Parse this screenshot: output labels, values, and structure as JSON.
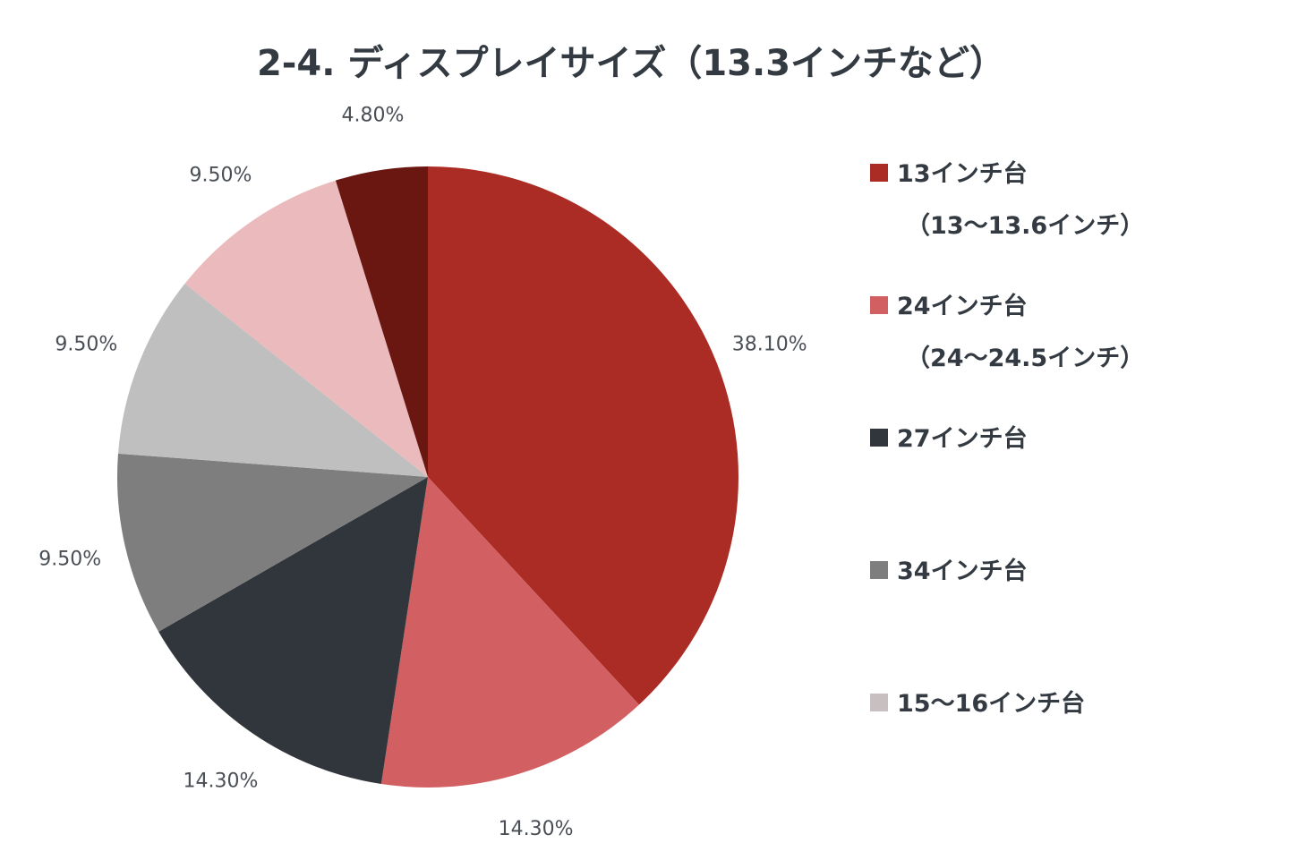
{
  "chart_data": {
    "type": "pie",
    "title": "2-4. ディスプレイサイズ（13.3インチなど）",
    "unit": "%",
    "slices": [
      {
        "name": "13インチ台",
        "name_line2": "（13〜13.6インチ）",
        "value": 38.1,
        "label": "38.10%",
        "color": "#ab2c25"
      },
      {
        "name": "24インチ台",
        "name_line2": "（24〜24.5インチ）",
        "value": 14.3,
        "label": "14.30%",
        "color": "#d26062"
      },
      {
        "name": "27インチ台",
        "name_line2": "",
        "value": 14.3,
        "label": "14.30%",
        "color": "#31363c"
      },
      {
        "name": "34インチ台",
        "name_line2": "",
        "value": 9.5,
        "label": "9.50%",
        "color": "#7e7e7e"
      },
      {
        "name": "",
        "name_line2": "",
        "value": 9.5,
        "label": "9.50%",
        "color": "#bfbfbf"
      },
      {
        "name": "15〜16インチ台",
        "name_line2": "",
        "value": 9.5,
        "label": "9.50%",
        "color": "#ebbabd"
      },
      {
        "name": "",
        "name_line2": "",
        "value": 4.8,
        "label": "4.80%",
        "color": "#6a1712"
      }
    ],
    "legend": {
      "placement": "right",
      "entries": [
        {
          "line1": "13インチ台",
          "line2": "（13〜13.6インチ）",
          "color": "#ab2c25"
        },
        {
          "line1": "24インチ台",
          "line2": "（24〜24.5インチ）",
          "color": "#d26062"
        },
        {
          "line1": "27インチ台",
          "line2": "",
          "color": "#31363c"
        },
        {
          "line1": "34インチ台",
          "line2": "",
          "color": "#7e7e7e"
        },
        {
          "line1": "15〜16インチ台",
          "line2": "",
          "color": "#c8c0c0"
        }
      ]
    },
    "colors": {
      "title": "#333a42",
      "labels": "#4a4f56",
      "background": "#ffffff"
    }
  }
}
